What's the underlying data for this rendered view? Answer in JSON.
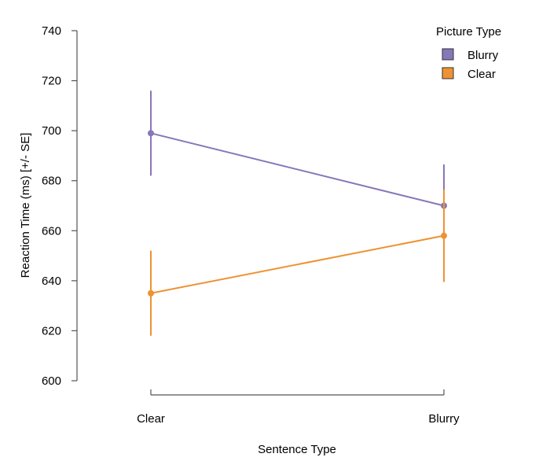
{
  "chart_data": {
    "type": "line",
    "title": "",
    "xlabel": "Sentence Type",
    "ylabel": "Reaction Time (ms) [+/- SE]",
    "categories": [
      "Clear",
      "Blurry"
    ],
    "ylim": [
      600,
      740
    ],
    "yticks": [
      600,
      620,
      640,
      660,
      680,
      700,
      720,
      740
    ],
    "legend_title": "Picture Type",
    "legend_position": "top-right",
    "grid": false,
    "series": [
      {
        "name": "Blurry",
        "color": "#8777b8",
        "values": [
          699,
          670
        ],
        "se": [
          17,
          16.5
        ]
      },
      {
        "name": "Clear",
        "color": "#ee9233",
        "values": [
          635,
          658
        ],
        "se": [
          17,
          18.5
        ]
      }
    ]
  }
}
